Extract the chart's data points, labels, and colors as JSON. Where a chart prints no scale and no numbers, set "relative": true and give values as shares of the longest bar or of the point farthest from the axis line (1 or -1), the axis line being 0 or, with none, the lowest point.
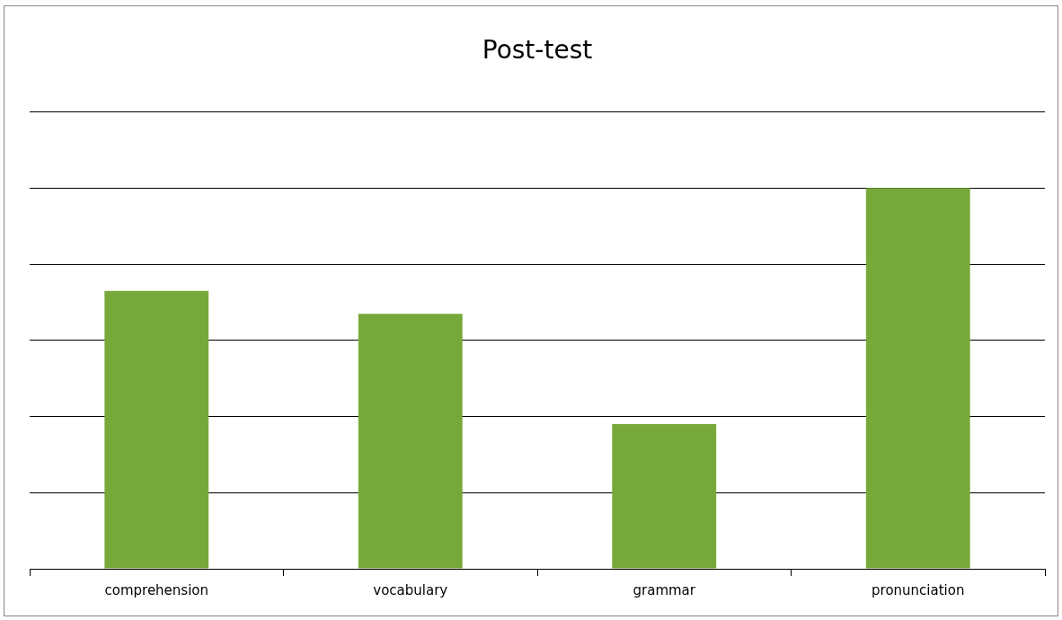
{
  "chart_data": {
    "type": "bar",
    "title": "Post-test",
    "categories": [
      "comprehension",
      "vocabulary",
      "grammar",
      "pronunciation"
    ],
    "values": [
      0.73,
      0.67,
      0.38,
      1
    ],
    "color": "#77a83a",
    "relative": true,
    "grid": "y"
  }
}
